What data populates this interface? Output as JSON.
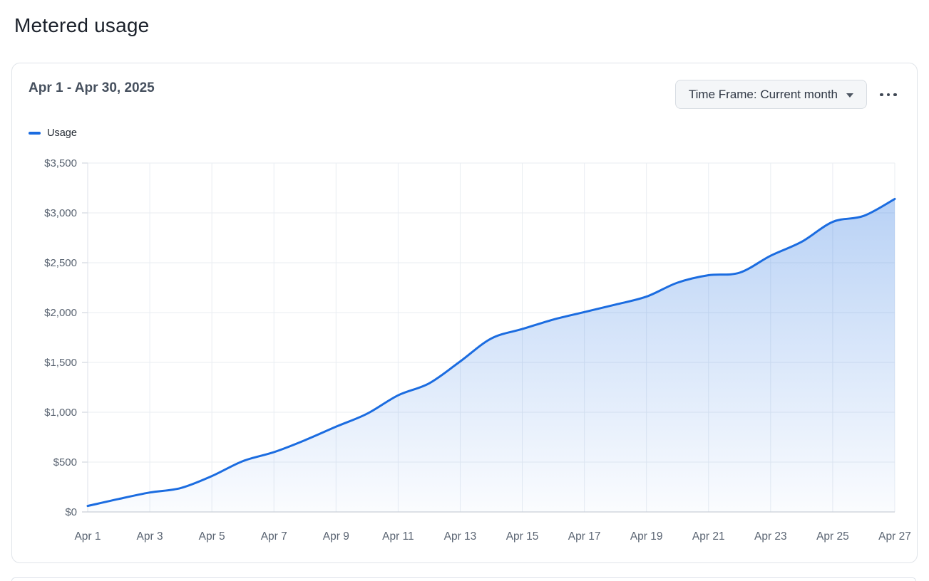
{
  "page": {
    "title": "Metered usage"
  },
  "card": {
    "date_range": "Apr 1 - Apr 30, 2025",
    "time_frame_button": "Time Frame: Current month",
    "menu_icon": "ellipsis-icon"
  },
  "colors": {
    "accent_blue": "#1b6ce0",
    "grid": "#e9edf2",
    "axis": "#c9cfd8",
    "tick_text": "#5a6472",
    "card_border": "#e0e4e9",
    "button_bg": "#f4f6f8"
  },
  "chart_data": {
    "type": "area",
    "title": "Metered usage",
    "xlabel": "",
    "ylabel": "",
    "x": [
      "Apr 1",
      "Apr 2",
      "Apr 3",
      "Apr 4",
      "Apr 5",
      "Apr 6",
      "Apr 7",
      "Apr 8",
      "Apr 9",
      "Apr 10",
      "Apr 11",
      "Apr 12",
      "Apr 13",
      "Apr 14",
      "Apr 15",
      "Apr 16",
      "Apr 17",
      "Apr 18",
      "Apr 19",
      "Apr 20",
      "Apr 21",
      "Apr 22",
      "Apr 23",
      "Apr 24",
      "Apr 25",
      "Apr 26",
      "Apr 27"
    ],
    "series": [
      {
        "name": "Usage",
        "color": "#1b6ce0",
        "values": [
          60,
          130,
          195,
          240,
          360,
          510,
          600,
          720,
          855,
          985,
          1170,
          1290,
          1510,
          1740,
          1835,
          1930,
          2005,
          2080,
          2160,
          2300,
          2375,
          2400,
          2570,
          2710,
          2910,
          2970,
          3140
        ]
      }
    ],
    "ylim": [
      0,
      3500
    ],
    "y_ticks": [
      0,
      500,
      1000,
      1500,
      2000,
      2500,
      3000,
      3500
    ],
    "y_tick_labels": [
      "$0",
      "$500",
      "$1,000",
      "$1,500",
      "$2,000",
      "$2,500",
      "$3,000",
      "$3,500"
    ],
    "x_tick_every": 2,
    "grid": true,
    "legend_position": "top-left",
    "area_fill_top": "rgba(27,108,224,0.34)",
    "area_fill_bottom": "rgba(27,108,224,0.02)"
  }
}
